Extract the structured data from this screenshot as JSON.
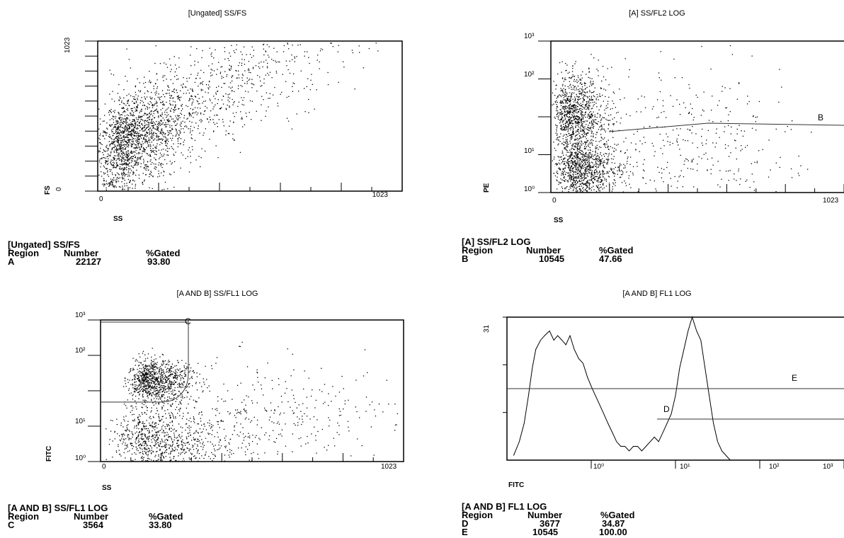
{
  "panels": [
    {
      "id": "p1",
      "title": "[Ungated] SS/FS",
      "x_label": "SS",
      "y_label": "FS",
      "x_ticks": [
        "0",
        "1023"
      ],
      "y_ticks": [
        "0",
        "1023"
      ],
      "region_labels": [
        "A"
      ],
      "stats": {
        "title": "[Ungated] SS/FS",
        "headers": [
          "Region",
          "Number",
          "%Gated"
        ],
        "rows": [
          [
            "A",
            "22127",
            "93.80"
          ]
        ]
      }
    },
    {
      "id": "p2",
      "title": "[A] SS/FL2 LOG",
      "x_label": "SS",
      "y_label": "PE",
      "x_ticks": [
        "0",
        "1023"
      ],
      "y_ticks": [
        "10⁰",
        "10¹",
        "10²",
        "10³"
      ],
      "region_labels": [
        "B"
      ],
      "stats": {
        "title": "[A] SS/FL2 LOG",
        "headers": [
          "Region",
          "Number",
          "%Gated"
        ],
        "rows": [
          [
            "B",
            "10545",
            "47.66"
          ]
        ]
      }
    },
    {
      "id": "p3",
      "title": "[A AND B] SS/FL1 LOG",
      "x_label": "SS",
      "y_label": "FITC",
      "x_ticks": [
        "0",
        "1023"
      ],
      "y_ticks": [
        "10⁰",
        "10¹",
        "10²",
        "10³"
      ],
      "region_labels": [
        "C"
      ],
      "stats": {
        "title": "[A AND B] SS/FL1 LOG",
        "headers": [
          "Region",
          "Number",
          "%Gated"
        ],
        "rows": [
          [
            "C",
            "3564",
            "33.80"
          ]
        ]
      }
    },
    {
      "id": "p4",
      "title": "[A AND B] FL1 LOG",
      "x_label": "FITC",
      "y_label": "",
      "x_ticks": [
        "10⁰",
        "10¹",
        "10²",
        "10³"
      ],
      "y_ticks": [
        "31"
      ],
      "region_labels": [
        "D",
        "E"
      ],
      "stats": {
        "title": "[A AND B] FL1 LOG",
        "headers": [
          "Region",
          "Number",
          "%Gated"
        ],
        "rows": [
          [
            "D",
            "3677",
            "34.87"
          ],
          [
            "E",
            "10545",
            "100.00"
          ]
        ]
      }
    }
  ],
  "chart_data": [
    {
      "type": "scatter",
      "title": "[Ungated] SS/FS",
      "xlabel": "SS",
      "ylabel": "FS",
      "xlim": [
        0,
        1023
      ],
      "ylim": [
        0,
        1023
      ],
      "x_scale": "linear",
      "y_scale": "linear",
      "point_clouds": [
        {
          "x_center": 60,
          "x_spread": 120,
          "y_center": 300,
          "y_spread": 280,
          "density": "high"
        },
        {
          "x_center": 300,
          "x_spread": 300,
          "y_center": 600,
          "y_spread": 300,
          "density": "low"
        }
      ],
      "regions": [
        {
          "name": "A",
          "events": 22127,
          "percent_gated": 93.8
        }
      ]
    },
    {
      "type": "scatter",
      "title": "[A] SS/FL2 LOG",
      "xlabel": "SS",
      "ylabel": "PE",
      "xlim": [
        0,
        1023
      ],
      "ylim": [
        0.1,
        1000
      ],
      "x_scale": "linear",
      "y_scale": "log",
      "point_clouds": [
        {
          "x_center": 50,
          "x_spread": 80,
          "y_center": 12,
          "y_spread_decades": 0.5,
          "density": "high"
        },
        {
          "x_center": 70,
          "x_spread": 100,
          "y_center": 0.4,
          "y_spread_decades": 0.4,
          "density": "high"
        },
        {
          "x_center": 400,
          "x_spread": 300,
          "y_center": 2,
          "y_spread_decades": 1.0,
          "density": "low"
        }
      ],
      "regions": [
        {
          "name": "B",
          "events": 10545,
          "percent_gated": 47.66
        }
      ]
    },
    {
      "type": "scatter",
      "title": "[A AND B] SS/FL1 LOG",
      "xlabel": "SS",
      "ylabel": "FITC",
      "xlim": [
        0,
        1023
      ],
      "ylim": [
        0.1,
        1000
      ],
      "x_scale": "linear",
      "y_scale": "log",
      "point_clouds": [
        {
          "x_center": 140,
          "x_spread": 80,
          "y_center": 20,
          "y_spread_decades": 0.3,
          "density": "high"
        },
        {
          "x_center": 120,
          "x_spread": 150,
          "y_center": 0.4,
          "y_spread_decades": 0.5,
          "density": "high"
        },
        {
          "x_center": 450,
          "x_spread": 300,
          "y_center": 1.5,
          "y_spread_decades": 0.8,
          "density": "low"
        }
      ],
      "regions": [
        {
          "name": "C",
          "events": 3564,
          "percent_gated": 33.8
        }
      ]
    },
    {
      "type": "line",
      "title": "[A AND B] FL1 LOG",
      "xlabel": "FITC",
      "ylabel": "",
      "x_scale": "log",
      "xlim": [
        0.1,
        1000
      ],
      "ylim": [
        0,
        31
      ],
      "series": [
        {
          "x": [
            0.12,
            0.14,
            0.16,
            0.18,
            0.2,
            0.22,
            0.25,
            0.28,
            0.32,
            0.36,
            0.4,
            0.45,
            0.5,
            0.56,
            0.63,
            0.71,
            0.8,
            0.9,
            1.0,
            1.12,
            1.26,
            1.41,
            1.58,
            1.78,
            2.0,
            2.24,
            2.51,
            2.82,
            3.16,
            3.55,
            3.98,
            4.47,
            5.01,
            5.62,
            6.31,
            7.08,
            7.94,
            8.91,
            10.0,
            11.2,
            12.6,
            14.1,
            15.8,
            17.8,
            20.0,
            22.4,
            25.1,
            28.2,
            31.6,
            35.5,
            39.8,
            44.7,
            50.1
          ],
          "y": [
            1,
            4,
            8,
            14,
            20,
            24,
            26,
            27,
            28,
            26,
            27,
            26,
            25,
            27,
            24,
            22,
            21,
            18,
            16,
            14,
            12,
            10,
            8,
            6,
            4,
            3,
            3,
            2,
            3,
            3,
            2,
            3,
            4,
            5,
            4,
            6,
            8,
            10,
            14,
            20,
            24,
            28,
            31,
            28,
            26,
            20,
            14,
            8,
            4,
            2,
            1,
            0,
            0
          ]
        }
      ],
      "regions": [
        {
          "name": "D",
          "range": [
            5,
            1000
          ],
          "events": 3677,
          "percent_gated": 34.87
        },
        {
          "name": "E",
          "range": [
            0.1,
            1000
          ],
          "events": 10545,
          "percent_gated": 100.0
        }
      ]
    }
  ]
}
